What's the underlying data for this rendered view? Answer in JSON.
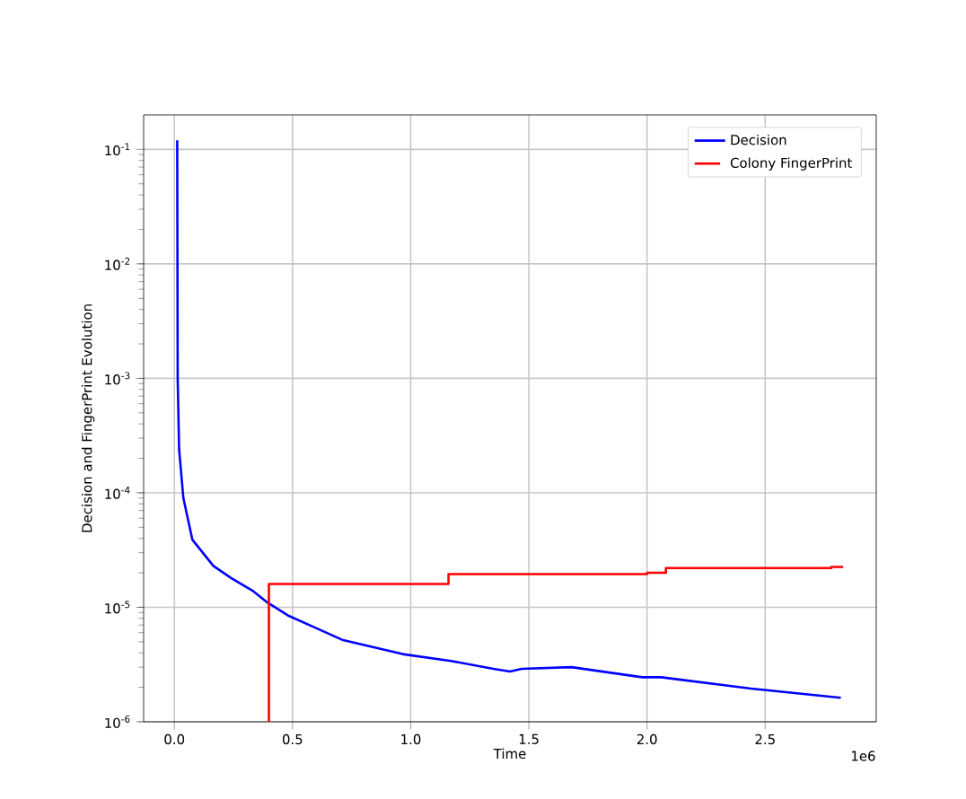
{
  "chart_data": {
    "type": "line",
    "xlabel": "Time",
    "ylabel": "Decision and FingerPrint Evolution",
    "annotations": [
      "1e6"
    ],
    "series": [
      {
        "name": "Decision",
        "color": "#0000ff",
        "x": [
          0.012,
          0.014,
          0.02,
          0.038,
          0.076,
          0.165,
          0.24,
          0.33,
          0.394,
          0.48,
          0.585,
          0.71,
          0.966,
          1.17,
          1.35,
          1.42,
          1.47,
          1.68,
          1.98,
          2.06,
          2.44,
          2.82
        ],
        "values": [
          0.12,
          0.001,
          0.00024,
          9e-05,
          3.9e-05,
          2.3e-05,
          1.8e-05,
          1.4e-05,
          1.1e-05,
          8.5e-06,
          6.8e-06,
          5.2e-06,
          3.9e-06,
          3.4e-06,
          2.9e-06,
          2.75e-06,
          2.9e-06,
          3e-06,
          2.45e-06,
          2.45e-06,
          1.95e-06,
          1.62e-06
        ]
      },
      {
        "name": "Colony FingerPrint",
        "color": "#ff0000",
        "type": "step",
        "x": [
          0.4,
          0.4,
          1.16,
          2.0,
          2.08,
          2.78,
          2.83
        ],
        "values": [
          1e-06,
          1.6e-05,
          1.95e-05,
          2e-05,
          2.2e-05,
          2.25e-05,
          2.25e-05
        ]
      }
    ],
    "log": "y",
    "grid": true,
    "legend": "top right",
    "xlim": [
      -0.13,
      2.97
    ],
    "ylim": [
      1e-06,
      0.2
    ],
    "xticks": [
      {
        "value": 0,
        "label": "0.0"
      },
      0.5,
      {
        "value": 1,
        "label": "1.0"
      },
      1.5,
      {
        "value": 2,
        "label": "2.0"
      },
      2.5
    ],
    "yticks": [
      {
        "value": 1e-06,
        "label": "10$^{-6}$"
      },
      {
        "value": 1e-05,
        "label": "10$^{-5}$"
      },
      {
        "value": 0.0001,
        "label": "10$^{-4}$"
      },
      {
        "value": 0.001,
        "label": "10$^{-3}$"
      },
      {
        "value": 0.01,
        "label": "10$^{-2}$"
      },
      {
        "value": 0.1,
        "label": "10$^{-1}$"
      }
    ]
  }
}
